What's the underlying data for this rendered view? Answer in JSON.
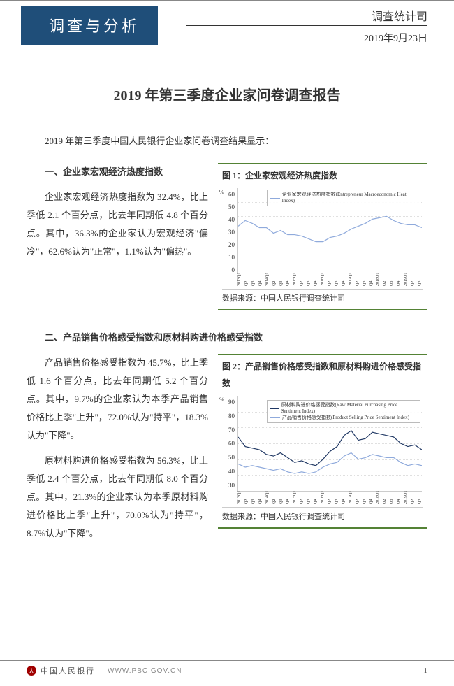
{
  "header": {
    "banner": "调查与分析",
    "department": "调查统计司",
    "date": "2019年9月23日"
  },
  "title": "2019 年第三季度企业家问卷调查报告",
  "intro": "2019 年第三季度中国人民银行企业家问卷调查结果显示：",
  "section1": {
    "heading": "一、企业家宏观经济热度指数",
    "body": "企业家宏观经济热度指数为 32.4%，比上季低 2.1 个百分点，比去年同期低 4.8 个百分点。其中，36.3%的企业家认为宏观经济\"偏冷\"，62.6%认为\"正常\"，1.1%认为\"偏热\"。"
  },
  "chart1": {
    "title": "图 1：企业家宏观经济热度指数",
    "type": "line",
    "legend": "企业家宏观经济热度指数(Entrepreneur Macroeconomic Heat Index)",
    "line_color": "#8faadc",
    "ylim": [
      0,
      60
    ],
    "ytick_step": 10,
    "grid_color": "#e0e0e0",
    "background_color": "#ffffff",
    "x_labels": [
      "2013Q1",
      "Q2",
      "Q3",
      "Q4",
      "2014Q1",
      "Q2",
      "Q3",
      "Q4",
      "2015Q1",
      "Q2",
      "Q3",
      "Q4",
      "2016Q1",
      "Q2",
      "Q3",
      "Q4",
      "2017Q1",
      "Q2",
      "Q3",
      "Q4",
      "2018Q1",
      "Q2",
      "Q3",
      "Q4",
      "2019Q1",
      "Q2",
      "Q3"
    ],
    "values": [
      33,
      37,
      35,
      32,
      32,
      28,
      30,
      27,
      27,
      26,
      24,
      22,
      22,
      25,
      26,
      28,
      31,
      33,
      35,
      38,
      39,
      40,
      37,
      35,
      34,
      34,
      32
    ],
    "source": "数据来源：中国人民银行调查统计司"
  },
  "section2": {
    "heading": "二、产品销售价格感受指数和原材料购进价格感受指数",
    "p1": "产品销售价格感受指数为 45.7%，比上季低 1.6 个百分点，比去年同期低 5.2 个百分点。其中，9.7%的企业家认为本季产品销售价格比上季\"上升\"，72.0%认为\"持平\"，18.3%认为\"下降\"。",
    "p2": "原材料购进价格感受指数为 56.3%，比上季低 2.4 个百分点，比去年同期低 8.0 个百分点。其中，21.3%的企业家认为本季原材料购进价格比上季\"上升\"，70.0%认为\"持平\"，8.7%认为\"下降\"。"
  },
  "chart2": {
    "title": "图 2：产品销售价格感受指数和原材料购进价格感受指数",
    "type": "line",
    "ylim": [
      30,
      90
    ],
    "ytick_step": 10,
    "grid_color": "#e0e0e0",
    "background_color": "#ffffff",
    "x_labels": [
      "2013Q1",
      "Q2",
      "Q3",
      "Q4",
      "2014Q1",
      "Q2",
      "Q3",
      "Q4",
      "2015Q1",
      "Q2",
      "Q3",
      "Q4",
      "2016Q1",
      "Q2",
      "Q3",
      "Q4",
      "2017Q1",
      "Q2",
      "Q3",
      "Q4",
      "2018Q1",
      "Q2",
      "Q3",
      "Q4",
      "2019Q1",
      "Q2",
      "Q3"
    ],
    "series": [
      {
        "name": "原材料购进价格感受指数(Raw Material Purchasing Price Sentiment Index)",
        "color": "#203864",
        "values": [
          64,
          58,
          57,
          56,
          53,
          52,
          54,
          51,
          48,
          49,
          47,
          46,
          50,
          55,
          58,
          65,
          68,
          62,
          63,
          67,
          66,
          65,
          64,
          60,
          58,
          59,
          56
        ]
      },
      {
        "name": "产品销售价格感受指数(Product Selling Price Sentiment Index)",
        "color": "#8faadc",
        "values": [
          47,
          45,
          46,
          45,
          44,
          43,
          44,
          42,
          41,
          42,
          41,
          42,
          45,
          47,
          48,
          52,
          54,
          50,
          51,
          53,
          52,
          51,
          51,
          48,
          46,
          47,
          46
        ]
      }
    ],
    "source": "数据来源：中国人民银行调查统计司"
  },
  "footer": {
    "bank": "中国人民银行",
    "url": "WWW.PBC.GOV.CN",
    "page": "1"
  }
}
